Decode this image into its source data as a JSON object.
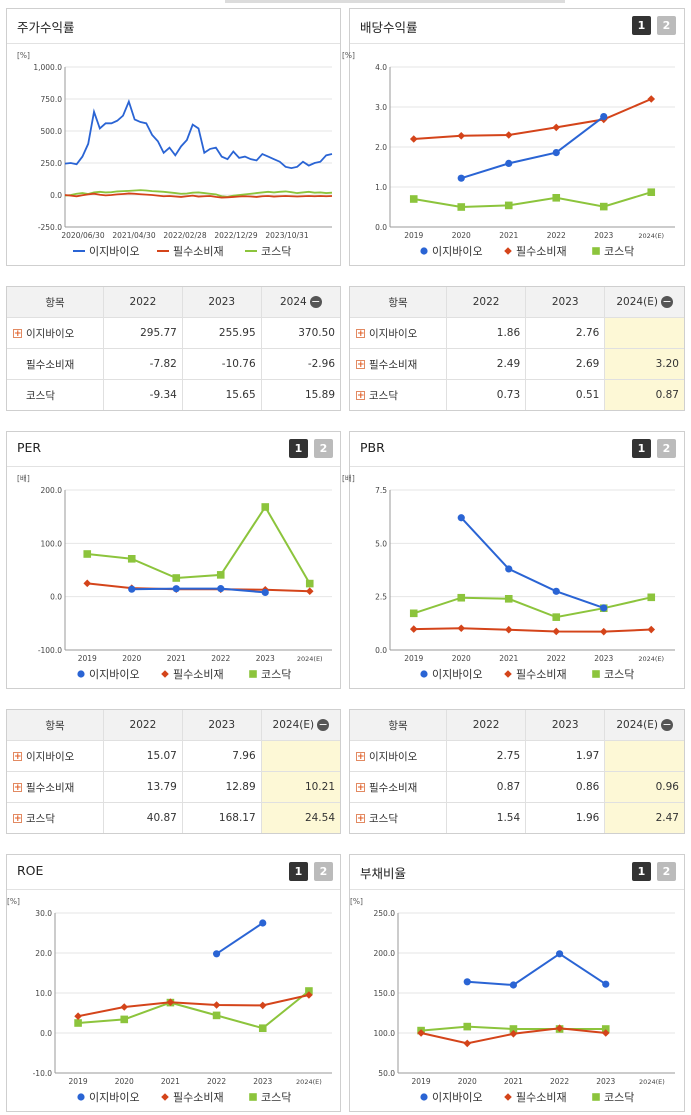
{
  "top_strip": {
    "color": "#dcdcdc"
  },
  "legend_labels": [
    "이지바이오",
    "필수소비재",
    "코스닥"
  ],
  "colors": {
    "c0": "#2a64d4",
    "c1": "#d4441a",
    "c2": "#8cc43c"
  },
  "panels": {
    "price": {
      "title": "주가수익률"
    },
    "div": {
      "title": "배당수익률",
      "page1": "1",
      "page2": "2"
    },
    "per": {
      "title": "PER",
      "page1": "1",
      "page2": "2"
    },
    "pbr": {
      "title": "PBR",
      "page1": "1",
      "page2": "2"
    },
    "roe": {
      "title": "ROE",
      "page1": "1",
      "page2": "2"
    },
    "debt": {
      "title": "부채비율",
      "page1": "1",
      "page2": "2"
    }
  },
  "tables": {
    "price": {
      "header": [
        "항목",
        "2022",
        "2023",
        "2024"
      ],
      "expand_icon": "minus-circle-icon",
      "rows": [
        {
          "label": "이지바이오",
          "plus": true,
          "values": [
            "295.77",
            "255.95",
            "370.50"
          ]
        },
        {
          "label": "필수소비재",
          "plus": false,
          "values": [
            "-7.82",
            "-10.76",
            "-2.96"
          ]
        },
        {
          "label": "코스닥",
          "plus": false,
          "values": [
            "-9.34",
            "15.65",
            "15.89"
          ]
        }
      ]
    },
    "div": {
      "header": [
        "항목",
        "2022",
        "2023",
        "2024(E)"
      ],
      "expand_icon": "minus-circle-icon",
      "rows": [
        {
          "label": "이지바이오",
          "plus": true,
          "values": [
            "1.86",
            "2.76",
            ""
          ]
        },
        {
          "label": "필수소비재",
          "plus": true,
          "values": [
            "2.49",
            "2.69",
            "3.20"
          ]
        },
        {
          "label": "코스닥",
          "plus": true,
          "values": [
            "0.73",
            "0.51",
            "0.87"
          ]
        }
      ]
    },
    "per": {
      "header": [
        "항목",
        "2022",
        "2023",
        "2024(E)"
      ],
      "expand_icon": "minus-circle-icon",
      "rows": [
        {
          "label": "이지바이오",
          "plus": true,
          "values": [
            "15.07",
            "7.96",
            ""
          ]
        },
        {
          "label": "필수소비재",
          "plus": true,
          "values": [
            "13.79",
            "12.89",
            "10.21"
          ]
        },
        {
          "label": "코스닥",
          "plus": true,
          "values": [
            "40.87",
            "168.17",
            "24.54"
          ]
        }
      ]
    },
    "pbr": {
      "header": [
        "항목",
        "2022",
        "2023",
        "2024(E)"
      ],
      "expand_icon": "minus-circle-icon",
      "rows": [
        {
          "label": "이지바이오",
          "plus": true,
          "values": [
            "2.75",
            "1.97",
            ""
          ]
        },
        {
          "label": "필수소비재",
          "plus": true,
          "values": [
            "0.87",
            "0.86",
            "0.96"
          ]
        },
        {
          "label": "코스닥",
          "plus": true,
          "values": [
            "1.54",
            "1.96",
            "2.47"
          ]
        }
      ]
    }
  },
  "chart_data": [
    {
      "id": "price",
      "type": "line",
      "title": "주가수익률",
      "unit": "[%]",
      "ylim": [
        -250,
        1000
      ],
      "yticks": [
        1000,
        750,
        500,
        250,
        0,
        -250
      ],
      "yticklabels": [
        "1,000.0",
        "750.0",
        "500.0",
        "250.0",
        "0.0",
        "-250.0"
      ],
      "xticklabels": [
        "2020/06/30",
        "2021/04/30",
        "2022/02/28",
        "2022/12/29",
        "2023/10/31"
      ],
      "series": [
        {
          "name": "이지바이오",
          "values": [
            245,
            250,
            240,
            300,
            400,
            650,
            520,
            560,
            560,
            580,
            620,
            730,
            590,
            570,
            560,
            470,
            420,
            330,
            370,
            310,
            380,
            430,
            550,
            520,
            330,
            360,
            370,
            300,
            280,
            340,
            290,
            300,
            280,
            270,
            320,
            300,
            280,
            260,
            220,
            210,
            220,
            260,
            230,
            250,
            260,
            310,
            320
          ]
        },
        {
          "name": "필수소비재",
          "values": [
            0,
            -5,
            -10,
            -2,
            5,
            10,
            2,
            -3,
            0,
            5,
            8,
            12,
            10,
            6,
            3,
            0,
            -5,
            -10,
            -8,
            -12,
            -15,
            -10,
            -5,
            -12,
            -10,
            -8,
            -15,
            -20,
            -18,
            -15,
            -12,
            -10,
            -12,
            -15,
            -10,
            -8,
            -12,
            -10,
            -8,
            -10,
            -12,
            -10,
            -8,
            -10,
            -8,
            -10,
            -8
          ]
        },
        {
          "name": "코스닥",
          "values": [
            -5,
            0,
            10,
            15,
            8,
            20,
            25,
            20,
            22,
            28,
            30,
            32,
            35,
            38,
            35,
            30,
            28,
            25,
            20,
            15,
            10,
            12,
            18,
            20,
            15,
            10,
            5,
            -10,
            -15,
            -5,
            0,
            5,
            10,
            15,
            20,
            25,
            20,
            25,
            28,
            22,
            15,
            20,
            25,
            18,
            20,
            15,
            18
          ]
        }
      ]
    },
    {
      "id": "div",
      "type": "line",
      "title": "배당수익률",
      "unit": "[%]",
      "ylim": [
        0,
        4
      ],
      "yticks": [
        4,
        3,
        2,
        1,
        0
      ],
      "yticklabels": [
        "4.0",
        "3.0",
        "2.0",
        "1.0",
        "0.0"
      ],
      "categories": [
        "2019",
        "2020",
        "2021",
        "2022",
        "2023",
        "2024(E)"
      ],
      "series": [
        {
          "name": "이지바이오",
          "values": [
            null,
            1.22,
            1.59,
            1.86,
            2.76,
            null
          ]
        },
        {
          "name": "필수소비재",
          "values": [
            2.2,
            2.28,
            2.3,
            2.49,
            2.69,
            3.2
          ]
        },
        {
          "name": "코스닥",
          "values": [
            0.7,
            0.5,
            0.54,
            0.73,
            0.51,
            0.87
          ]
        }
      ]
    },
    {
      "id": "per",
      "type": "line",
      "title": "PER",
      "unit": "[배]",
      "ylim": [
        -100,
        200
      ],
      "yticks": [
        200,
        100,
        0,
        -100
      ],
      "yticklabels": [
        "200.0",
        "100.0",
        "0.0",
        "-100.0"
      ],
      "categories": [
        "2019",
        "2020",
        "2021",
        "2022",
        "2023",
        "2024(E)"
      ],
      "series": [
        {
          "name": "이지바이오",
          "values": [
            null,
            14,
            15,
            15.07,
            7.96,
            null
          ]
        },
        {
          "name": "필수소비재",
          "values": [
            25,
            16,
            14,
            13.79,
            12.89,
            10.21
          ]
        },
        {
          "name": "코스닥",
          "values": [
            80,
            71,
            35,
            40.87,
            168.17,
            24.54
          ]
        }
      ]
    },
    {
      "id": "pbr",
      "type": "line",
      "title": "PBR",
      "unit": "[배]",
      "ylim": [
        0,
        7.5
      ],
      "yticks": [
        7.5,
        5,
        2.5,
        0
      ],
      "yticklabels": [
        "7.5",
        "5.0",
        "2.5",
        "0.0"
      ],
      "categories": [
        "2019",
        "2020",
        "2021",
        "2022",
        "2023",
        "2024(E)"
      ],
      "series": [
        {
          "name": "이지바이오",
          "values": [
            null,
            6.2,
            3.8,
            2.75,
            1.97,
            null
          ]
        },
        {
          "name": "필수소비재",
          "values": [
            0.98,
            1.02,
            0.95,
            0.87,
            0.86,
            0.96
          ]
        },
        {
          "name": "코스닥",
          "values": [
            1.72,
            2.45,
            2.4,
            1.54,
            1.96,
            2.47
          ]
        }
      ]
    },
    {
      "id": "roe",
      "type": "line",
      "title": "ROE",
      "unit": "[%]",
      "ylim": [
        -10,
        30
      ],
      "yticks": [
        30,
        20,
        10,
        0,
        -10
      ],
      "yticklabels": [
        "30.0",
        "20.0",
        "10.0",
        "0.0",
        "-10.0"
      ],
      "categories": [
        "2019",
        "2020",
        "2021",
        "2022",
        "2023",
        "2024(E)"
      ],
      "series": [
        {
          "name": "이지바이오",
          "values": [
            null,
            null,
            null,
            19.8,
            27.5,
            null
          ]
        },
        {
          "name": "필수소비재",
          "values": [
            4.2,
            6.5,
            7.7,
            7.0,
            6.9,
            9.5
          ]
        },
        {
          "name": "코스닥",
          "values": [
            2.5,
            3.4,
            7.6,
            4.4,
            1.2,
            10.5
          ]
        }
      ]
    },
    {
      "id": "debt",
      "type": "line",
      "title": "부채비율",
      "unit": "[%]",
      "ylim": [
        50,
        250
      ],
      "yticks": [
        250,
        200,
        150,
        100,
        50
      ],
      "yticklabels": [
        "250.0",
        "200.0",
        "150.0",
        "100.0",
        "50.0"
      ],
      "categories": [
        "2019",
        "2020",
        "2021",
        "2022",
        "2023",
        "2024(E)"
      ],
      "series": [
        {
          "name": "이지바이오",
          "values": [
            null,
            164,
            160,
            199,
            161,
            null
          ]
        },
        {
          "name": "필수소비재",
          "values": [
            100,
            87,
            99,
            106,
            100,
            null
          ]
        },
        {
          "name": "코스닥",
          "values": [
            103,
            108,
            105,
            105,
            105,
            null
          ]
        }
      ]
    }
  ]
}
